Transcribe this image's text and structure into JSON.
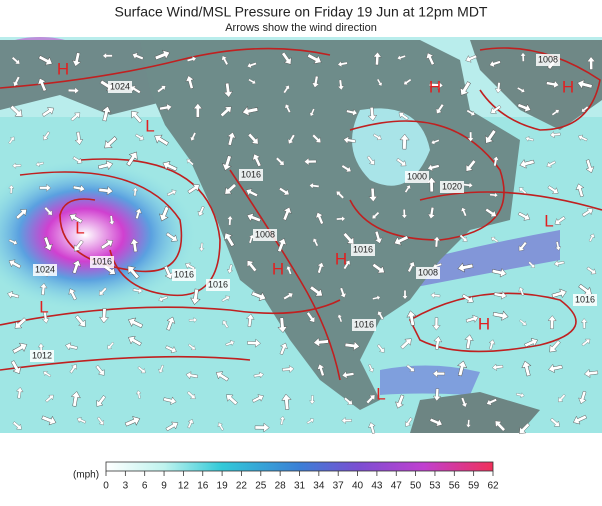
{
  "header": {
    "title": "Surface Wind/MSL Pressure on Friday 19 Jun at 12pm MDT",
    "subtitle": "Arrows show the wind direction"
  },
  "isobar_labels": [
    "1024",
    "1008",
    "1016",
    "1000",
    "1020",
    "1008",
    "1016",
    "1024",
    "1016",
    "1016",
    "1016",
    "1008",
    "1016",
    "1016",
    "1012"
  ],
  "pressure_centers": [
    "H",
    "H",
    "H",
    "L",
    "L",
    "H",
    "H",
    "L",
    "L",
    "L",
    "H"
  ],
  "legend": {
    "unit": "(mph)",
    "ticks": [
      "0",
      "3",
      "6",
      "9",
      "12",
      "16",
      "19",
      "22",
      "25",
      "28",
      "31",
      "34",
      "37",
      "40",
      "43",
      "47",
      "50",
      "53",
      "56",
      "59",
      "62"
    ]
  }
}
